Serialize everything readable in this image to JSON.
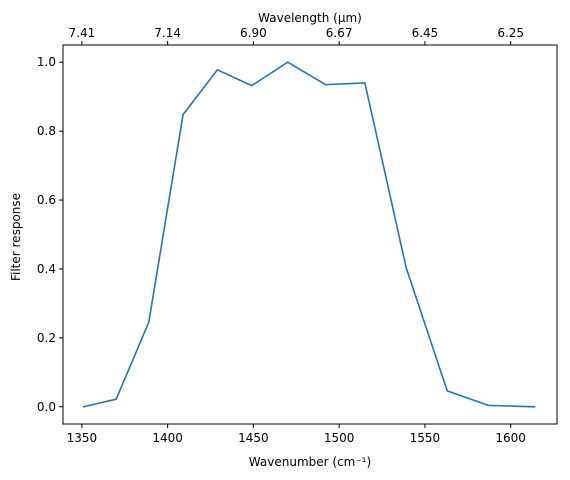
{
  "chart_data": {
    "type": "line",
    "xlabel": "Wavenumber (cm⁻¹)",
    "ylabel": "Filter response",
    "top_xlabel": "Wavelength (μm)",
    "xlim": [
      1339,
      1627
    ],
    "ylim": [
      -0.05,
      1.05
    ],
    "x_ticks": [
      "1350",
      "1400",
      "1450",
      "1500",
      "1550",
      "1600"
    ],
    "y_ticks": [
      "0.0",
      "0.2",
      "0.4",
      "0.6",
      "0.8",
      "1.0"
    ],
    "top_x_ticks": [
      {
        "label": "7.41",
        "x": 1350
      },
      {
        "label": "7.14",
        "x": 1400
      },
      {
        "label": "6.90",
        "x": 1450
      },
      {
        "label": "6.67",
        "x": 1500
      },
      {
        "label": "6.45",
        "x": 1550
      },
      {
        "label": "6.25",
        "x": 1600
      }
    ],
    "grid": false,
    "series": [
      {
        "color": "#1f77b4",
        "x": [
          1351,
          1370,
          1389,
          1409,
          1429,
          1449,
          1470,
          1492,
          1515,
          1539,
          1563,
          1587,
          1614
        ],
        "y": [
          0.0,
          0.022,
          0.245,
          0.848,
          0.978,
          0.932,
          1.0,
          0.935,
          0.94,
          0.405,
          0.046,
          0.004,
          0.0
        ]
      }
    ]
  }
}
